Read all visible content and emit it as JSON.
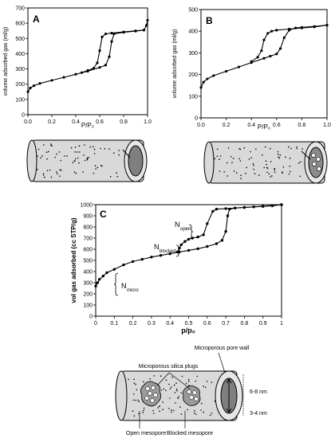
{
  "chart_data": [
    {
      "type": "line",
      "panel_label": "A",
      "xlabel": "P/P₀",
      "ylabel": "volume adsorbed gas (ml/g)",
      "xlim": [
        0,
        1
      ],
      "ylim": [
        0,
        700
      ],
      "x_ticks": [
        "0.0",
        "0.2",
        "0.4",
        "0.6",
        "0.8",
        "1.0"
      ],
      "y_ticks": [
        "0",
        "100",
        "200",
        "300",
        "400",
        "500",
        "600",
        "700"
      ],
      "series": [
        {
          "role": "adsorption",
          "x": [
            0,
            0.02,
            0.05,
            0.1,
            0.2,
            0.3,
            0.4,
            0.5,
            0.6,
            0.65,
            0.68,
            0.7,
            0.72,
            0.8,
            0.9,
            0.97,
            0.99,
            1.0
          ],
          "y": [
            150,
            175,
            190,
            205,
            225,
            245,
            265,
            285,
            310,
            325,
            380,
            480,
            530,
            540,
            548,
            555,
            585,
            620
          ]
        },
        {
          "role": "desorption",
          "x": [
            0.45,
            0.5,
            0.55,
            0.58,
            0.6,
            0.62,
            0.65,
            0.7,
            0.8,
            0.9,
            0.97
          ],
          "y": [
            276,
            290,
            305,
            340,
            420,
            510,
            530,
            535,
            543,
            550,
            555
          ]
        }
      ]
    },
    {
      "type": "line",
      "panel_label": "B",
      "xlabel": "P/P₀",
      "ylabel": "volume adsorbed gas (ml/g)",
      "xlim": [
        0,
        1
      ],
      "ylim": [
        0,
        500
      ],
      "x_ticks": [
        "0.0",
        "0.2",
        "0.4",
        "0.6",
        "0.8",
        "1.0"
      ],
      "y_ticks": [
        "0",
        "100",
        "200",
        "300",
        "400",
        "500"
      ],
      "series": [
        {
          "role": "adsorption",
          "x": [
            0,
            0.02,
            0.05,
            0.1,
            0.2,
            0.3,
            0.4,
            0.5,
            0.55,
            0.6,
            0.63,
            0.66,
            0.7,
            0.75,
            0.8,
            0.9,
            1.0
          ],
          "y": [
            140,
            165,
            180,
            195,
            215,
            235,
            255,
            275,
            285,
            295,
            320,
            370,
            405,
            415,
            418,
            422,
            428
          ]
        },
        {
          "role": "desorption",
          "x": [
            0.4,
            0.45,
            0.48,
            0.5,
            0.53,
            0.56,
            0.6,
            0.7,
            0.8,
            0.9,
            1.0
          ],
          "y": [
            260,
            280,
            310,
            360,
            390,
            400,
            405,
            410,
            415,
            420,
            428
          ]
        }
      ]
    },
    {
      "type": "line",
      "panel_label": "C",
      "xlabel": "p/p₀",
      "ylabel": "vol gas adsorbed (cc STP/g)",
      "xlim": [
        0,
        1
      ],
      "ylim": [
        0,
        1000
      ],
      "x_ticks": [
        "0",
        "0.1",
        "0.2",
        "0.3",
        "0.4",
        "0.5",
        "0.6",
        "0.7",
        "0.8",
        "0.9",
        "1"
      ],
      "y_ticks": [
        "0",
        "100",
        "200",
        "300",
        "400",
        "500",
        "600",
        "700",
        "800",
        "900",
        "1000"
      ],
      "series": [
        {
          "role": "adsorption",
          "x": [
            0,
            0.01,
            0.02,
            0.04,
            0.06,
            0.1,
            0.15,
            0.2,
            0.25,
            0.3,
            0.35,
            0.4,
            0.45,
            0.5,
            0.55,
            0.6,
            0.65,
            0.68,
            0.7,
            0.71,
            0.72,
            0.75,
            0.8,
            0.85,
            0.9,
            0.95,
            1.0
          ],
          "y": [
            270,
            300,
            330,
            360,
            390,
            420,
            460,
            490,
            510,
            530,
            545,
            560,
            575,
            590,
            605,
            625,
            650,
            680,
            760,
            900,
            960,
            970,
            975,
            980,
            985,
            990,
            1000
          ]
        },
        {
          "role": "desorption",
          "x": [
            0.44,
            0.45,
            0.46,
            0.48,
            0.5,
            0.52,
            0.55,
            0.58,
            0.6,
            0.63,
            0.65,
            0.7,
            0.8,
            0.9,
            1.0
          ],
          "y": [
            575,
            610,
            640,
            670,
            690,
            700,
            710,
            730,
            830,
            940,
            960,
            965,
            975,
            985,
            1000
          ]
        }
      ],
      "annotations": {
        "n_open": {
          "main": "N",
          "sub": "open"
        },
        "n_blocked": {
          "main": "N",
          "sub": "blocked"
        },
        "n_micro": {
          "main": "N",
          "sub": "micro"
        }
      }
    }
  ],
  "diagram": {
    "labels": {
      "plugs": "Microporous silica plugs",
      "pore_wall": "Microporous pore wall",
      "size_outer": "6-8 nm",
      "size_inner": "3-4 nm",
      "open_mesopore": "Open mesopore",
      "blocked_mesopore": "Blocked mesopore"
    }
  },
  "colors": {
    "line": "#000000",
    "tube_fill": "#d9d9d9",
    "end_dark": "#7f7f7f",
    "plug_fill": "#9a9a9a"
  }
}
